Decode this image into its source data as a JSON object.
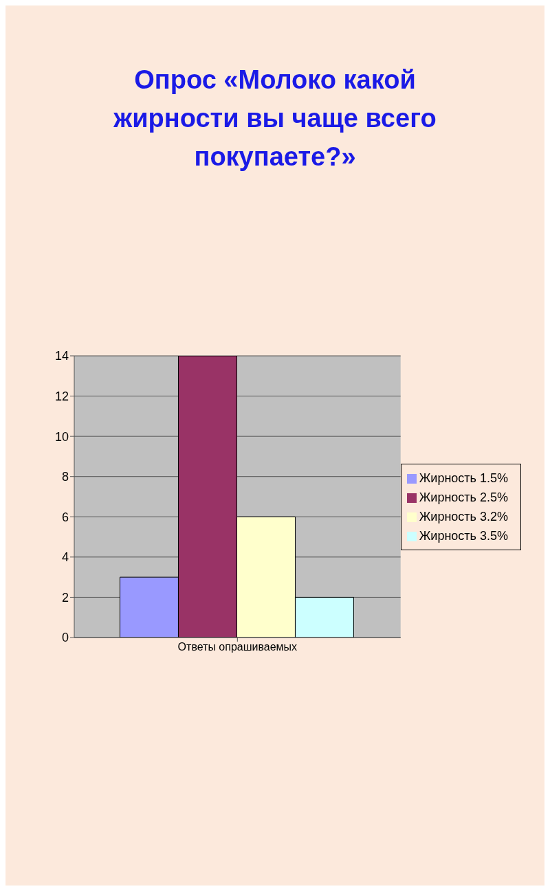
{
  "chart_data": {
    "type": "bar",
    "title": "Опрос «Молоко какой жирности вы чаще всего покупаете?»",
    "categories": [
      "Ответы опрашиваемых"
    ],
    "series": [
      {
        "name": "Жирность 1.5%",
        "color": "#9999ff",
        "values": [
          3
        ]
      },
      {
        "name": "Жирность 2.5%",
        "color": "#993366",
        "values": [
          14
        ]
      },
      {
        "name": "Жирность 3.2%",
        "color": "#ffffcc",
        "values": [
          6
        ]
      },
      {
        "name": "Жирность 3.5%",
        "color": "#ccffff",
        "values": [
          2
        ]
      }
    ],
    "ylim": [
      0,
      14
    ],
    "yticks": [
      0,
      2,
      4,
      6,
      8,
      10,
      12,
      14
    ],
    "grid": "y",
    "legend": "right"
  }
}
